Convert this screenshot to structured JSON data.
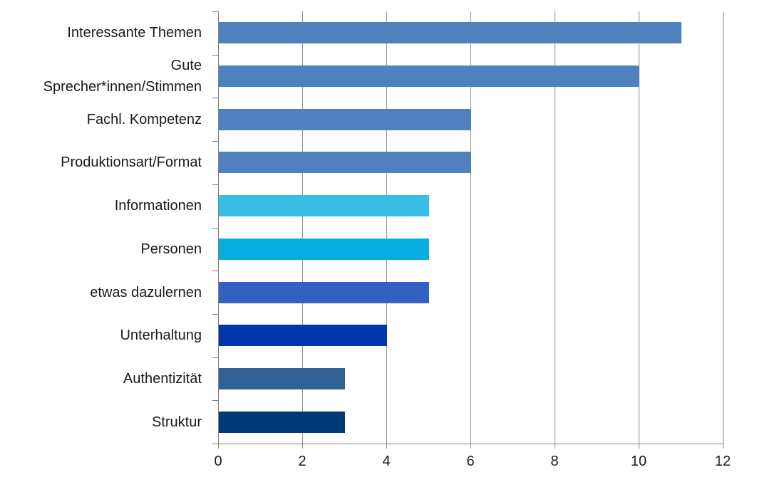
{
  "chart_data": {
    "type": "bar",
    "orientation": "horizontal",
    "title": "",
    "xlabel": "",
    "ylabel": "",
    "categories": [
      "Interessante Themen",
      "Gute\nSprecher*innen/Stimmen",
      "Fachl. Kompetenz",
      "Produktionsart/Format",
      "Informationen",
      "Personen",
      "etwas dazulernen",
      "Unterhaltung",
      "Authentizität",
      "Struktur"
    ],
    "values": [
      11,
      10,
      6,
      6,
      5,
      5,
      5,
      4,
      3,
      3
    ],
    "bar_colors": [
      "#4E81BD",
      "#4E81BD",
      "#4E81BD",
      "#4E81BD",
      "#39BEE5",
      "#05AEDF",
      "#3361C1",
      "#0237AC",
      "#336092",
      "#003B76"
    ],
    "xlim": [
      0,
      12
    ],
    "x_ticks": [
      "0",
      "2",
      "4",
      "6",
      "8",
      "10",
      "12"
    ],
    "grid": "vertical-major-on",
    "legend": "none",
    "colors": {
      "gridline": "#898989",
      "axis": "#808080",
      "text": "#1A1A1A",
      "background": "#FFFFFF"
    }
  }
}
